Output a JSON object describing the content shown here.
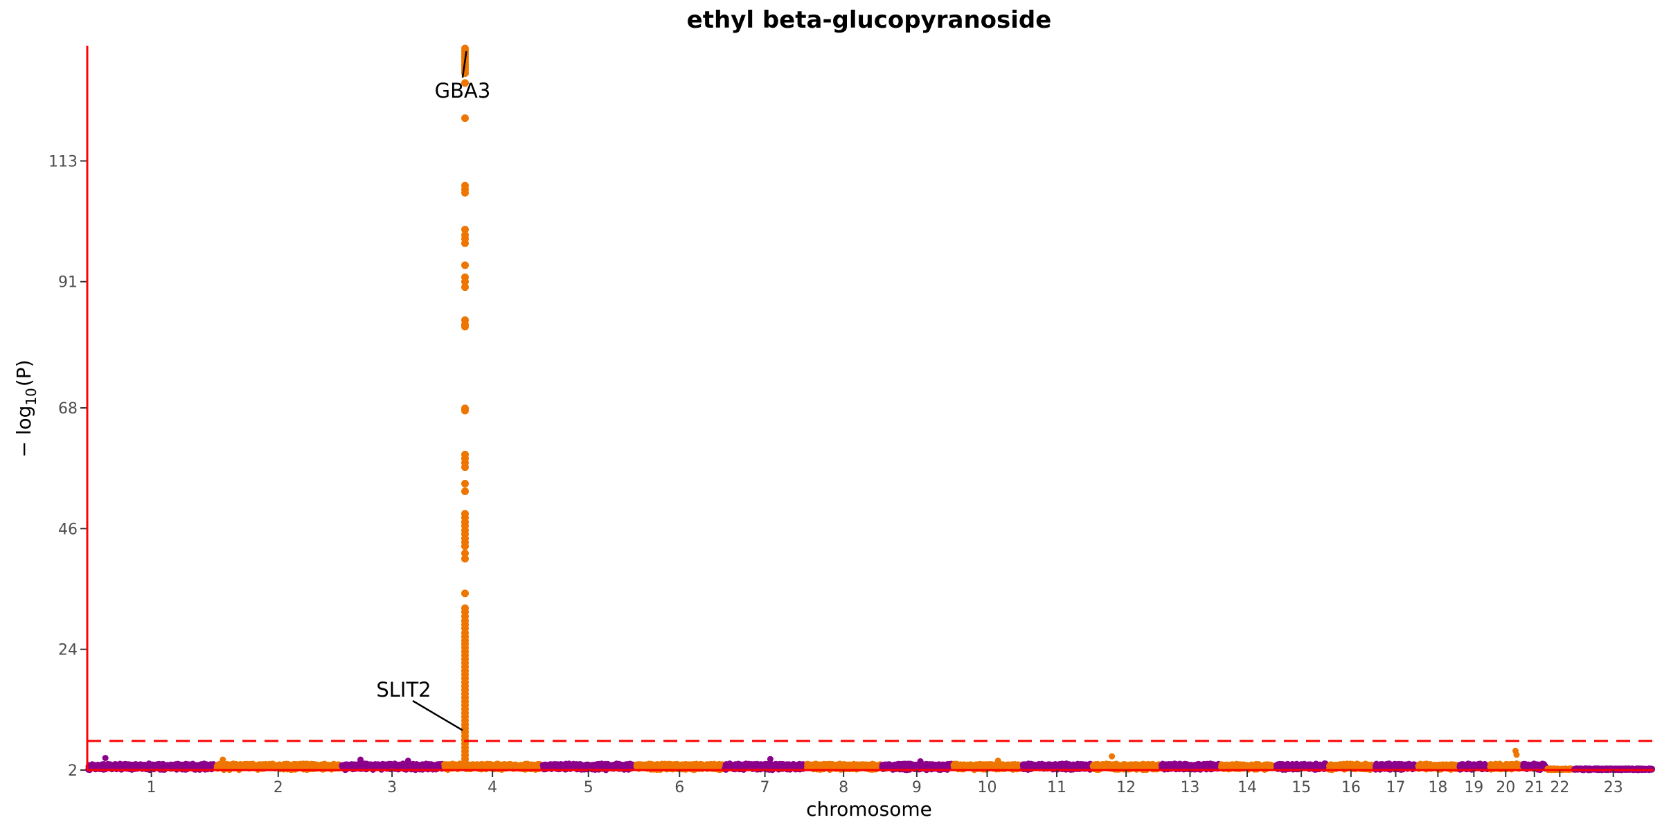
{
  "chart_data": {
    "type": "scatter",
    "subtype": "manhattan",
    "title": "ethyl beta-glucopyranoside",
    "xlabel": "chromosome",
    "ylabel": "−log10(P)",
    "ylabel_parts": {
      "prefix": "− log",
      "sub": "10",
      "suffix": "(P)"
    },
    "ylim": [
      2,
      134
    ],
    "yticks": [
      2,
      24,
      46,
      68,
      91,
      113
    ],
    "significance_line": 7.3,
    "colors": {
      "odd": "#8B008B",
      "even": "#EE7600",
      "axis": "#FF0000",
      "threshold": "#FF0000"
    },
    "chromosomes": [
      {
        "label": "1",
        "start": 0,
        "end": 248
      },
      {
        "label": "2",
        "start": 248,
        "end": 490
      },
      {
        "label": "3",
        "start": 490,
        "end": 688
      },
      {
        "label": "4",
        "start": 688,
        "end": 878
      },
      {
        "label": "5",
        "start": 878,
        "end": 1059
      },
      {
        "label": "6",
        "start": 1059,
        "end": 1230
      },
      {
        "label": "7",
        "start": 1230,
        "end": 1389
      },
      {
        "label": "8",
        "start": 1389,
        "end": 1534
      },
      {
        "label": "9",
        "start": 1534,
        "end": 1672
      },
      {
        "label": "10",
        "start": 1672,
        "end": 1806
      },
      {
        "label": "11",
        "start": 1806,
        "end": 1941
      },
      {
        "label": "12",
        "start": 1941,
        "end": 2074
      },
      {
        "label": "13",
        "start": 2074,
        "end": 2188
      },
      {
        "label": "14",
        "start": 2188,
        "end": 2295
      },
      {
        "label": "15",
        "start": 2295,
        "end": 2397
      },
      {
        "label": "16",
        "start": 2397,
        "end": 2487
      },
      {
        "label": "17",
        "start": 2487,
        "end": 2570
      },
      {
        "label": "18",
        "start": 2570,
        "end": 2650
      },
      {
        "label": "19",
        "start": 2650,
        "end": 2709
      },
      {
        "label": "20",
        "start": 2709,
        "end": 2773
      },
      {
        "label": "21",
        "start": 2773,
        "end": 2820
      },
      {
        "label": "22",
        "start": 2820,
        "end": 2871
      },
      {
        "label": "23",
        "start": 2871,
        "end": 3027
      }
    ],
    "peak": {
      "chromosome": "4",
      "position": 730,
      "values": [
        133.5,
        133,
        132.5,
        132,
        131.5,
        131,
        130.5,
        130,
        129.5,
        129,
        127.2,
        120.8,
        108.5,
        107.8,
        107.2,
        100.5,
        99.5,
        98.8,
        98,
        94,
        91.8,
        91,
        90,
        84,
        83.2,
        82.8,
        67.9,
        67.5,
        59.5,
        58.8,
        58,
        57.2,
        54.2,
        52.8,
        48.7,
        48,
        47.2,
        46.5,
        45.7,
        45,
        44.2,
        43.5,
        42.8,
        41.5,
        40.5,
        34.2,
        31.5,
        30.8,
        30,
        29.2,
        28.5,
        27.8,
        27,
        26.3,
        25.6,
        25,
        24.3,
        23.6,
        22.9,
        22.2,
        21.5,
        20.8,
        20.1,
        19.4,
        18.7,
        18,
        17.3,
        16.6,
        15.9,
        15.2,
        14.5,
        13.8,
        13.1,
        12.4,
        11.7,
        11,
        10.3,
        9.6,
        8.9,
        8.2,
        7.5,
        6.8,
        6.1,
        5.4,
        4.7,
        4,
        3.4,
        2.8
      ]
    },
    "annotations": [
      {
        "gene": "GBA3",
        "x": 730,
        "y": 133.5
      },
      {
        "gene": "SLIT2",
        "x": 728,
        "y": 10
      }
    ],
    "background_level": {
      "typical_max": 3.2,
      "min": 2
    },
    "highlighted_points": [
      {
        "chromosome": "1",
        "x": 35,
        "y": 4.2
      },
      {
        "chromosome": "2",
        "x": 262,
        "y": 3.9
      },
      {
        "chromosome": "3",
        "x": 528,
        "y": 3.9
      },
      {
        "chromosome": "3",
        "x": 620,
        "y": 3.7
      },
      {
        "chromosome": "7",
        "x": 1320,
        "y": 4
      },
      {
        "chromosome": "9",
        "x": 1610,
        "y": 3.6
      },
      {
        "chromosome": "10",
        "x": 1760,
        "y": 3.7
      },
      {
        "chromosome": "12",
        "x": 1980,
        "y": 4.5
      },
      {
        "chromosome": "20",
        "x": 2760,
        "y": 5.5
      },
      {
        "chromosome": "20",
        "x": 2762,
        "y": 4.8
      }
    ]
  }
}
